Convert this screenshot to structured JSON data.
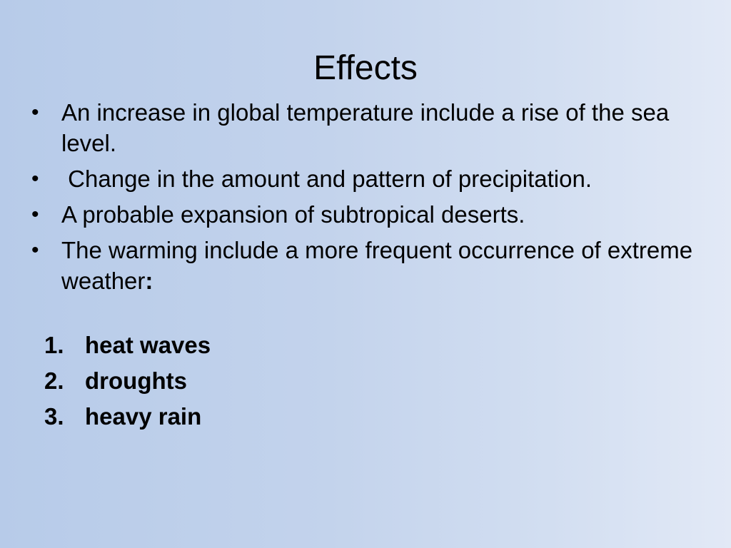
{
  "slide": {
    "title": "Effects",
    "bullets": [
      {
        "text": "An increase in global temperature include a rise of the sea level."
      },
      {
        "text": " Change in the amount and pattern of precipitation."
      },
      {
        "text": "A probable expansion of subtropical deserts."
      },
      {
        "text": "The warming include a more frequent occurrence of extreme weather",
        "suffix": ":"
      }
    ],
    "numbered": [
      {
        "num": "1.",
        "text": "heat waves"
      },
      {
        "num": "2.",
        "text": "droughts"
      },
      {
        "num": "3.",
        "text": "heavy rain"
      }
    ],
    "bullet_symbol": "•",
    "colors": {
      "background_left": "#b7cbe9",
      "background_right": "#e2e9f6",
      "text": "#000000"
    }
  }
}
